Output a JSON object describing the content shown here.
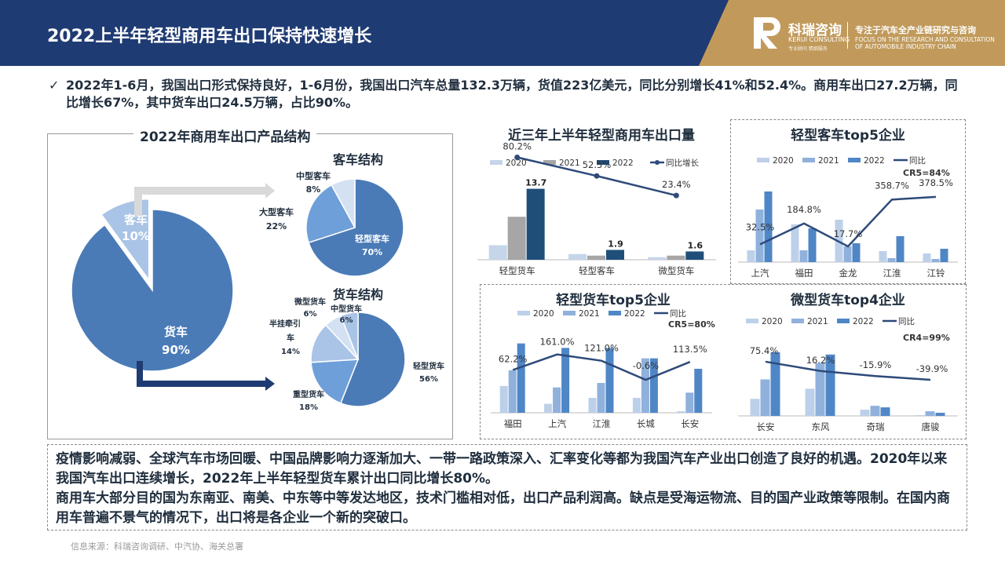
{
  "header": {
    "title": "2022上半年轻型商用车出口保持快速增长",
    "logo_cn": "科瑞咨询",
    "logo_en": "KERUI CONSULTING",
    "logo_sub": "专业顾问  精细服务",
    "tagline_cn": "专注于汽车全产业链研究与咨询",
    "tagline_en": "FOCUS ON THE RESEARCH AND CONSULTATION OF AUTOMOBILE INDUSTRY CHAIN"
  },
  "bullet": {
    "check": "✓",
    "text": "2022年1-6月，我国出口形式保持良好，1-6月份，我国出口汽车总量132.3万辆，货值223亿美元，同比分别增长41%和52.4%。商用车出口27.2万辆，同比增长67%，其中货车出口24.5万辆，占比90%。"
  },
  "bottom": {
    "p1": "疫情影响减弱、全球汽车市场回暖、中国品牌影响力逐渐加大、一带一路政策深入、汇率变化等都为我国汽车产业出口创造了良好的机遇。2020年以来我国汽车出口连续增长，2022年上半年轻型货车累计出口同比增长80%。",
    "p2": "商用车大部分目的国为东南亚、南美、中东等中等发达地区，技术门槛相对低，出口产品利润高。缺点是受海运物流、目的国产业政策等限制。在国内商用车普遍不景气的情况下，出口将是各企业一个新的突破口。"
  },
  "source": "信息来源：科瑞咨询调研、中汽协、海关总署",
  "colors": {
    "header": "#1f3b73",
    "gold": "#c19a5b",
    "c2020": "#c5d5ea",
    "c2021": "#a6a6a6",
    "c2022": "#1f4e79",
    "line": "#2e4a7a",
    "t2020": "#bdd0ea",
    "t2021": "#8fb1dc",
    "t2022": "#4f86c6",
    "pie_main": "#4a7bb7",
    "pie_mid": "#6f9fd8",
    "pie_light": "#a9c4e6",
    "pie_pale": "#d3e1f3"
  },
  "chart_data": [
    {
      "id": "structure",
      "type": "pie",
      "title": "2022年商用车出口产品结构",
      "slices": [
        {
          "label": "货车",
          "value": 90,
          "pct": "90%"
        },
        {
          "label": "客车",
          "value": 10,
          "pct": "10%"
        }
      ]
    },
    {
      "id": "bus",
      "type": "pie",
      "title": "客车结构",
      "slices": [
        {
          "label": "轻型客车",
          "value": 70,
          "pct": "70%"
        },
        {
          "label": "大型客车",
          "value": 22,
          "pct": "22%"
        },
        {
          "label": "中型客车",
          "value": 8,
          "pct": "8%"
        }
      ]
    },
    {
      "id": "truck",
      "type": "pie",
      "title": "货车结构",
      "slices": [
        {
          "label": "轻型货车",
          "value": 56,
          "pct": "56%"
        },
        {
          "label": "重型货车",
          "value": 18,
          "pct": "18%"
        },
        {
          "label": "半挂牵引车",
          "value": 14,
          "pct": "14%"
        },
        {
          "label": "微型货车",
          "value": 6,
          "pct": "6%"
        },
        {
          "label": "中型货车",
          "value": 6,
          "pct": "6%"
        }
      ]
    },
    {
      "id": "three_year",
      "type": "bar",
      "title": "近三年上半年轻型商用车出口量",
      "legend": [
        "2020",
        "2021",
        "2022",
        "同比增长"
      ],
      "categories": [
        "轻型货车",
        "轻型客车",
        "微型货车"
      ],
      "series": [
        {
          "name": "2020",
          "values": [
            2.8,
            1.1,
            0.5
          ]
        },
        {
          "name": "2021",
          "values": [
            8.3,
            0.8,
            0.8
          ]
        },
        {
          "name": "2022",
          "values": [
            13.7,
            1.9,
            1.6
          ]
        }
      ],
      "value_labels": [
        "13.7",
        "1.9",
        "1.6"
      ],
      "growth": [
        80.2,
        52.5,
        23.4
      ],
      "growth_labels": [
        "80.2%",
        "52.5%",
        "23.4%"
      ]
    },
    {
      "id": "bus_top5",
      "type": "bar",
      "title": "轻型客车top5企业",
      "legend": [
        "2020",
        "2021",
        "2022",
        "同比"
      ],
      "note": "CR5=84%",
      "categories": [
        "上汽",
        "福田",
        "金龙",
        "江淮",
        "江铃"
      ],
      "series": [
        {
          "name": "2020",
          "values": [
            15,
            48,
            54,
            14,
            11
          ]
        },
        {
          "name": "2021",
          "values": [
            67,
            15,
            20,
            5,
            4
          ]
        },
        {
          "name": "2022",
          "values": [
            90,
            43,
            24,
            33,
            17
          ]
        }
      ],
      "growth": [
        32.5,
        184.8,
        17.7,
        358.7,
        378.5
      ],
      "growth_labels": [
        "32.5%",
        "184.8%",
        "17.7%",
        "358.7%",
        "378.5%"
      ]
    },
    {
      "id": "truck_top5",
      "type": "bar",
      "title": "轻型货车top5企业",
      "legend": [
        "2020",
        "2021",
        "2022",
        "同比"
      ],
      "note": "CR5=80%",
      "categories": [
        "福田",
        "上汽",
        "江淮",
        "长城",
        "长安"
      ],
      "series": [
        {
          "name": "2020",
          "values": [
            36,
            12,
            20,
            20,
            2
          ]
        },
        {
          "name": "2021",
          "values": [
            57,
            34,
            40,
            73,
            27
          ]
        },
        {
          "name": "2022",
          "values": [
            93,
            87,
            87,
            73,
            59
          ]
        }
      ],
      "growth": [
        62.2,
        161.0,
        121.0,
        -0.6,
        113.5
      ],
      "growth_labels": [
        "62.2%",
        "161.0%",
        "121.0%",
        "-0.6%",
        "113.5%"
      ]
    },
    {
      "id": "mini_top4",
      "type": "bar",
      "title": "微型货车top4企业",
      "legend": [
        "2020",
        "2021",
        "2022",
        "同比"
      ],
      "note": "CR4=99%",
      "categories": [
        "长安",
        "东风",
        "奇瑞",
        "唐骏"
      ],
      "series": [
        {
          "name": "2020",
          "values": [
            22,
            35,
            8,
            1
          ]
        },
        {
          "name": "2021",
          "values": [
            47,
            68,
            13,
            6
          ]
        },
        {
          "name": "2022",
          "values": [
            82,
            79,
            11,
            4
          ]
        }
      ],
      "growth": [
        75.4,
        16.2,
        -15.9,
        -39.9
      ],
      "growth_labels": [
        "75.4%",
        "16.2%",
        "-15.9%",
        "-39.9%"
      ]
    }
  ]
}
